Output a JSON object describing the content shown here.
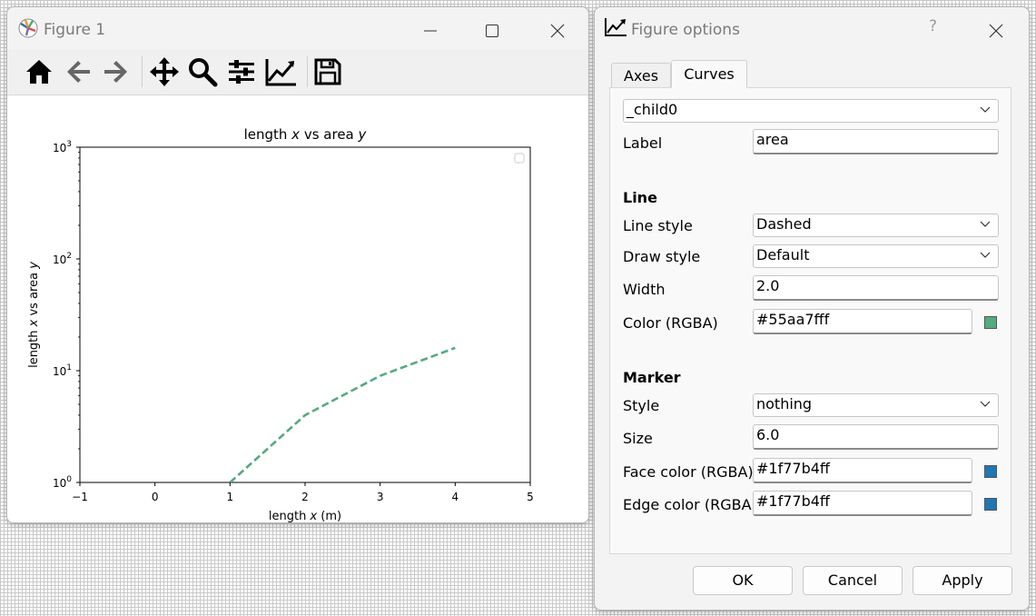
{
  "figure_window": {
    "title": "Figure 1",
    "controls": {
      "minimize": "minimize-icon",
      "maximize": "maximize-icon",
      "close": "close-icon"
    },
    "toolbar": [
      "home-icon",
      "back-icon",
      "forward-icon",
      "pan-icon",
      "zoom-icon",
      "configure-subplots-icon",
      "edit-curves-icon",
      "save-icon"
    ]
  },
  "chart_data": {
    "type": "line",
    "title_parts": [
      "length ",
      "x",
      " vs area ",
      "y"
    ],
    "xlabel_parts": [
      "length ",
      "x",
      " (m)"
    ],
    "ylabel_parts": [
      "length ",
      "x",
      " vs area ",
      "y"
    ],
    "x": [
      1,
      2,
      3,
      4
    ],
    "series": [
      {
        "values": [
          1,
          4,
          9,
          16
        ],
        "color": "#55aa7f",
        "style": "dashed"
      }
    ],
    "xlim": [
      -1,
      5
    ],
    "ylim": [
      1,
      1000
    ],
    "yscale": "log",
    "xticks": [
      "−1",
      "0",
      "1",
      "2",
      "3",
      "4",
      "5"
    ],
    "yticks": [
      {
        "base": "10",
        "exp": "0"
      },
      {
        "base": "10",
        "exp": "1"
      },
      {
        "base": "10",
        "exp": "2"
      },
      {
        "base": "10",
        "exp": "3"
      }
    ],
    "legend": "upper-right (empty)",
    "grid": false
  },
  "options_dialog": {
    "title": "Figure options",
    "help": "?",
    "tabs": [
      "Axes",
      "Curves"
    ],
    "active_tab": "Curves",
    "curve_select": "_child0",
    "label_label": "Label",
    "label_value": "area",
    "line_section": "Line",
    "line_style_label": "Line style",
    "line_style_value": "Dashed",
    "draw_style_label": "Draw style",
    "draw_style_value": "Default",
    "width_label": "Width",
    "width_value": "2.0",
    "color_label": "Color (RGBA)",
    "color_value": "#55aa7fff",
    "color_swatch": "#55aa7f",
    "marker_section": "Marker",
    "marker_style_label": "Style",
    "marker_style_value": "nothing",
    "size_label": "Size",
    "size_value": "6.0",
    "face_label": "Face color (RGBA)",
    "face_value": "#1f77b4ff",
    "face_swatch": "#1f77b4",
    "edge_label": "Edge color (RGBA)",
    "edge_value": "#1f77b4ff",
    "edge_swatch": "#1f77b4",
    "ok": "OK",
    "cancel": "Cancel",
    "apply": "Apply"
  }
}
